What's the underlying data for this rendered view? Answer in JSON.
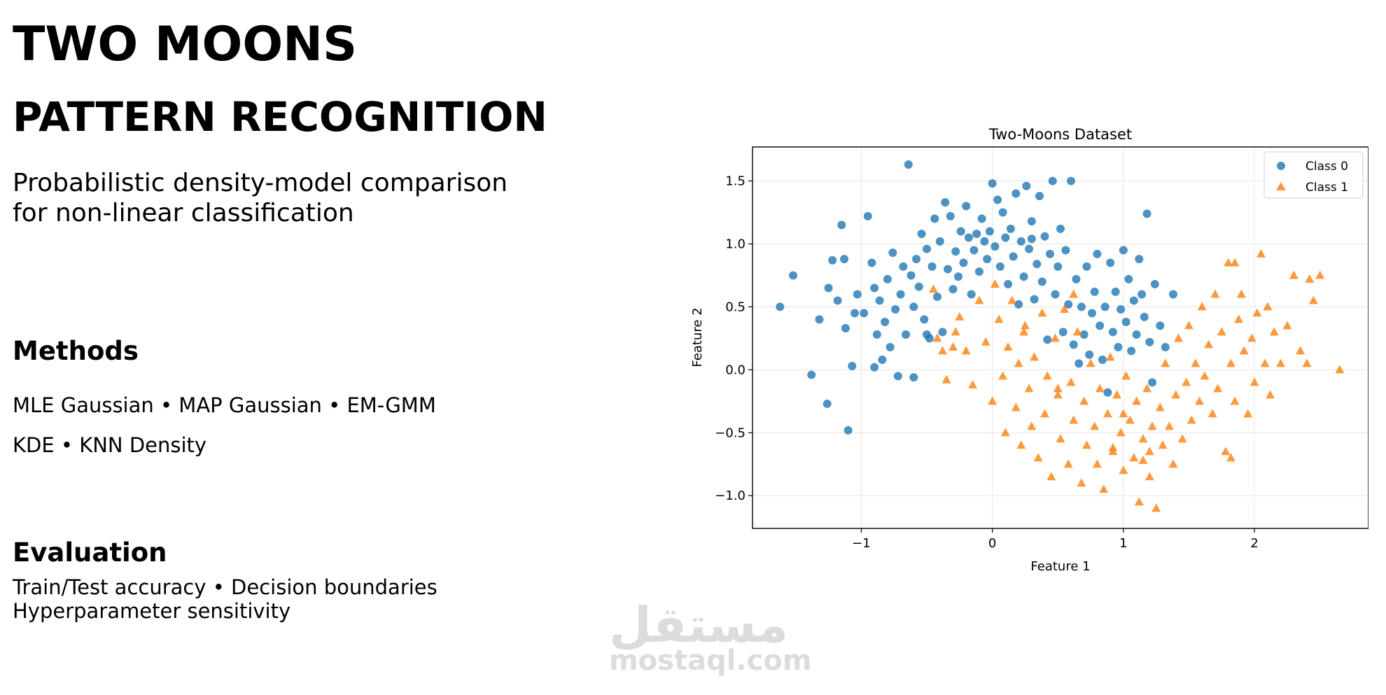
{
  "heading": {
    "title": "TWO MOONS",
    "subtitle": "PATTERN RECOGNITION",
    "description_lines": [
      "Probabilistic density-model comparison",
      "for non-linear classification"
    ]
  },
  "methods": {
    "heading": "Methods",
    "lines": [
      "MLE Gaussian • MAP Gaussian • EM-GMM",
      "KDE • KNN Density"
    ]
  },
  "evaluation": {
    "heading": "Evaluation",
    "lines": [
      "Train/Test accuracy • Decision boundaries",
      "Hyperparameter sensitivity"
    ]
  },
  "watermark": {
    "logo": "مستقل",
    "url": "mostaql.com"
  },
  "chart_data": {
    "type": "scatter",
    "title": "Two-Moons Dataset",
    "xlabel": "Feature 1",
    "ylabel": "Feature 2",
    "xlim": [
      -1.83,
      2.87
    ],
    "ylim": [
      -1.26,
      1.77
    ],
    "xticks": [
      -1,
      0,
      1,
      2
    ],
    "xtick_labels": [
      "−1",
      "0",
      "1",
      "2"
    ],
    "yticks": [
      -1.0,
      -0.5,
      0.0,
      0.5,
      1.0,
      1.5
    ],
    "ytick_labels": [
      "−1.0",
      "−0.5",
      "0.0",
      "0.5",
      "1.0",
      "1.5"
    ],
    "grid": true,
    "legend_position": "top-right",
    "series": [
      {
        "name": "Class 0",
        "marker": "circle",
        "color": "#1f77b4",
        "points": [
          [
            -1.62,
            0.5
          ],
          [
            -1.52,
            0.75
          ],
          [
            -1.38,
            -0.04
          ],
          [
            -1.32,
            0.4
          ],
          [
            -1.26,
            -0.27
          ],
          [
            -1.25,
            0.65
          ],
          [
            -1.22,
            0.87
          ],
          [
            -1.18,
            0.55
          ],
          [
            -1.15,
            1.15
          ],
          [
            -1.13,
            0.88
          ],
          [
            -1.12,
            0.33
          ],
          [
            -1.1,
            -0.48
          ],
          [
            -1.07,
            0.03
          ],
          [
            -1.05,
            0.45
          ],
          [
            -1.03,
            0.6
          ],
          [
            -0.98,
            0.45
          ],
          [
            -0.95,
            1.22
          ],
          [
            -0.92,
            0.85
          ],
          [
            -0.9,
            0.65
          ],
          [
            -0.88,
            0.28
          ],
          [
            -0.86,
            0.55
          ],
          [
            -0.84,
            0.08
          ],
          [
            -0.82,
            0.38
          ],
          [
            -0.8,
            0.72
          ],
          [
            -0.78,
            0.18
          ],
          [
            -0.76,
            0.93
          ],
          [
            -0.74,
            0.48
          ],
          [
            -0.72,
            -0.05
          ],
          [
            -0.7,
            0.6
          ],
          [
            -0.68,
            0.82
          ],
          [
            -0.66,
            0.28
          ],
          [
            -0.64,
            1.63
          ],
          [
            -0.62,
            0.75
          ],
          [
            -0.6,
            0.5
          ],
          [
            -0.58,
            0.88
          ],
          [
            -0.56,
            0.66
          ],
          [
            -0.54,
            1.08
          ],
          [
            -0.52,
            0.4
          ],
          [
            -0.5,
            0.96
          ],
          [
            -0.48,
            0.25
          ],
          [
            -0.46,
            0.82
          ],
          [
            -0.44,
            1.2
          ],
          [
            -0.42,
            0.58
          ],
          [
            -0.4,
            1.02
          ],
          [
            -0.38,
            0.3
          ],
          [
            -0.36,
            1.33
          ],
          [
            -0.34,
            0.8
          ],
          [
            -0.32,
            1.22
          ],
          [
            -0.3,
            0.64
          ],
          [
            -0.28,
            0.94
          ],
          [
            -0.26,
            0.74
          ],
          [
            -0.24,
            1.1
          ],
          [
            -0.22,
            0.85
          ],
          [
            -0.2,
            1.3
          ],
          [
            -0.18,
            1.05
          ],
          [
            -0.16,
            0.6
          ],
          [
            -0.14,
            0.95
          ],
          [
            -0.12,
            1.08
          ],
          [
            -0.1,
            0.78
          ],
          [
            -0.08,
            1.2
          ],
          [
            -0.06,
            1.02
          ],
          [
            -0.04,
            0.88
          ],
          [
            -0.02,
            1.1
          ],
          [
            0,
            1.48
          ],
          [
            0.02,
            0.98
          ],
          [
            0.04,
            1.35
          ],
          [
            0.06,
            0.82
          ],
          [
            0.08,
            1.25
          ],
          [
            0.1,
            1.05
          ],
          [
            0.12,
            0.68
          ],
          [
            0.14,
            1.12
          ],
          [
            0.16,
            0.9
          ],
          [
            0.18,
            1.4
          ],
          [
            0.2,
            0.52
          ],
          [
            0.22,
            1.02
          ],
          [
            0.24,
            0.74
          ],
          [
            0.26,
            1.46
          ],
          [
            0.28,
            0.96
          ],
          [
            0.3,
            1.18
          ],
          [
            0.32,
            0.56
          ],
          [
            0.34,
            0.84
          ],
          [
            0.36,
            1.38
          ],
          [
            0.38,
            0.7
          ],
          [
            0.4,
            1.06
          ],
          [
            0.42,
            0.24
          ],
          [
            0.44,
            0.92
          ],
          [
            0.46,
            1.5
          ],
          [
            0.48,
            0.6
          ],
          [
            0.5,
            0.82
          ],
          [
            0.52,
            1.12
          ],
          [
            0.54,
            0.3
          ],
          [
            0.56,
            0.95
          ],
          [
            0.58,
            0.52
          ],
          [
            0.6,
            1.5
          ],
          [
            0.62,
            0.2
          ],
          [
            0.64,
            0.72
          ],
          [
            0.66,
            0.05
          ],
          [
            0.68,
            0.5
          ],
          [
            0.7,
            0.28
          ],
          [
            0.72,
            0.82
          ],
          [
            0.74,
            0.12
          ],
          [
            0.76,
            0.45
          ],
          [
            0.78,
            0.62
          ],
          [
            0.8,
            0.92
          ],
          [
            0.82,
            0.35
          ],
          [
            0.84,
            0.08
          ],
          [
            0.86,
            0.5
          ],
          [
            0.88,
            -0.18
          ],
          [
            0.9,
            0.85
          ],
          [
            0.92,
            0.3
          ],
          [
            0.94,
            0.62
          ],
          [
            0.96,
            0.18
          ],
          [
            0.98,
            0.48
          ],
          [
            1,
            0.95
          ],
          [
            1.02,
            0.38
          ],
          [
            1.04,
            0.72
          ],
          [
            1.06,
            0.15
          ],
          [
            1.08,
            0.55
          ],
          [
            1.1,
            0.28
          ],
          [
            1.12,
            0.88
          ],
          [
            1.14,
            0.6
          ],
          [
            1.16,
            0.42
          ],
          [
            1.18,
            1.24
          ],
          [
            1.2,
            0.22
          ],
          [
            1.22,
            -0.1
          ],
          [
            1.24,
            0.68
          ],
          [
            1.28,
            0.35
          ],
          [
            1.32,
            0.18
          ],
          [
            1.38,
            0.6
          ],
          [
            -0.5,
            0.28
          ],
          [
            -0.6,
            -0.06
          ],
          [
            0.3,
            1.04
          ],
          [
            -0.9,
            0.02
          ]
        ]
      },
      {
        "name": "Class 1",
        "marker": "triangle",
        "color": "#ff7f0e",
        "points": [
          [
            -0.45,
            0.64
          ],
          [
            -0.35,
            -0.08
          ],
          [
            -0.3,
            0.18
          ],
          [
            -0.25,
            0.42
          ],
          [
            -0.2,
            0.15
          ],
          [
            -0.15,
            -0.12
          ],
          [
            -0.1,
            0.55
          ],
          [
            -0.05,
            0.22
          ],
          [
            0,
            -0.25
          ],
          [
            0.02,
            0.68
          ],
          [
            0.05,
            0.4
          ],
          [
            0.08,
            -0.05
          ],
          [
            0.1,
            -0.5
          ],
          [
            0.12,
            0.18
          ],
          [
            0.15,
            0.55
          ],
          [
            0.18,
            -0.3
          ],
          [
            0.2,
            0.05
          ],
          [
            0.22,
            -0.6
          ],
          [
            0.25,
            0.35
          ],
          [
            0.28,
            -0.15
          ],
          [
            0.3,
            -0.45
          ],
          [
            0.32,
            0.1
          ],
          [
            0.35,
            -0.7
          ],
          [
            0.38,
            0.45
          ],
          [
            0.4,
            -0.35
          ],
          [
            0.42,
            -0.05
          ],
          [
            0.45,
            -0.85
          ],
          [
            0.48,
            0.25
          ],
          [
            0.5,
            -0.2
          ],
          [
            0.52,
            -0.55
          ],
          [
            0.55,
            0.48
          ],
          [
            0.58,
            -0.75
          ],
          [
            0.6,
            -0.1
          ],
          [
            0.62,
            -0.4
          ],
          [
            0.65,
            0.3
          ],
          [
            0.68,
            -0.9
          ],
          [
            0.7,
            -0.25
          ],
          [
            0.72,
            -0.6
          ],
          [
            0.75,
            0.05
          ],
          [
            0.78,
            -0.45
          ],
          [
            0.8,
            -0.75
          ],
          [
            0.82,
            -0.15
          ],
          [
            0.85,
            -0.95
          ],
          [
            0.88,
            -0.35
          ],
          [
            0.9,
            0.1
          ],
          [
            0.92,
            -0.65
          ],
          [
            0.95,
            -0.2
          ],
          [
            0.98,
            -0.5
          ],
          [
            1,
            -0.8
          ],
          [
            1.02,
            -0.05
          ],
          [
            1.05,
            -0.4
          ],
          [
            1.08,
            -0.7
          ],
          [
            1.1,
            -0.25
          ],
          [
            1.12,
            -1.05
          ],
          [
            1.15,
            -0.55
          ],
          [
            1.18,
            -0.15
          ],
          [
            1.2,
            -0.85
          ],
          [
            1.22,
            -0.45
          ],
          [
            1.25,
            -1.1
          ],
          [
            1.28,
            -0.3
          ],
          [
            1.3,
            -0.6
          ],
          [
            1.32,
            0.05
          ],
          [
            1.35,
            -0.45
          ],
          [
            1.38,
            -0.75
          ],
          [
            1.4,
            -0.2
          ],
          [
            1.42,
            0.25
          ],
          [
            1.45,
            -0.55
          ],
          [
            1.48,
            -0.1
          ],
          [
            1.5,
            0.35
          ],
          [
            1.52,
            -0.4
          ],
          [
            1.55,
            0.05
          ],
          [
            1.58,
            -0.25
          ],
          [
            1.6,
            0.5
          ],
          [
            1.62,
            -0.05
          ],
          [
            1.65,
            0.2
          ],
          [
            1.68,
            -0.35
          ],
          [
            1.7,
            0.6
          ],
          [
            1.72,
            -0.15
          ],
          [
            1.75,
            0.3
          ],
          [
            1.78,
            -0.65
          ],
          [
            1.8,
            0.85
          ],
          [
            1.82,
            0.05
          ],
          [
            1.85,
            -0.25
          ],
          [
            1.88,
            0.4
          ],
          [
            1.9,
            0.6
          ],
          [
            1.92,
            0.15
          ],
          [
            1.95,
            -0.35
          ],
          [
            1.98,
            0.25
          ],
          [
            2,
            -0.1
          ],
          [
            2.02,
            0.45
          ],
          [
            2.05,
            0.92
          ],
          [
            2.08,
            0.05
          ],
          [
            2.1,
            0.5
          ],
          [
            2.12,
            -0.2
          ],
          [
            2.15,
            0.3
          ],
          [
            2.2,
            0.05
          ],
          [
            2.25,
            0.35
          ],
          [
            2.3,
            0.75
          ],
          [
            2.35,
            0.15
          ],
          [
            2.4,
            0.05
          ],
          [
            2.42,
            0.72
          ],
          [
            2.45,
            0.55
          ],
          [
            2.5,
            0.75
          ],
          [
            2.65,
            0
          ],
          [
            -0.42,
            0.25
          ],
          [
            -0.38,
            0.15
          ],
          [
            -0.28,
            0.3
          ],
          [
            0.24,
            0.3
          ],
          [
            0.62,
            0.6
          ],
          [
            1.82,
            -0.7
          ],
          [
            1.2,
            -0.65
          ],
          [
            0.5,
            -0.15
          ],
          [
            1.85,
            0.85
          ],
          [
            1.15,
            -0.72
          ],
          [
            0.92,
            -0.62
          ],
          [
            1.0,
            -0.35
          ]
        ]
      }
    ]
  }
}
